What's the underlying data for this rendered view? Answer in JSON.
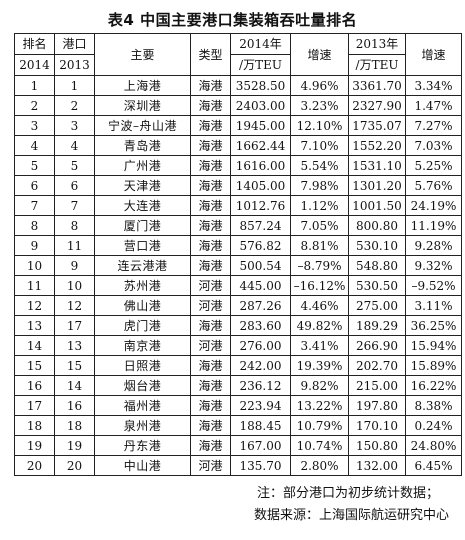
{
  "title": "表4  中国主要港口集装箱吞吐量排名",
  "headers": {
    "rank_label": "排名",
    "rank_year": "2014",
    "port_label": "港口",
    "port_year": "2013",
    "main": "主要",
    "type": "类型",
    "v2014_a": "2014年",
    "v2014_b": "/万TEU",
    "growth_2014": "增速",
    "v2013_a": "2013年",
    "v2013_b": "/万TEU",
    "growth_2013": "增速"
  },
  "rows": [
    {
      "rank": "1",
      "rank2013": "1",
      "port": "上海港",
      "type": "海港",
      "teu2014": "3528.50",
      "growth2014": "4.96%",
      "teu2013": "3361.70",
      "growth2013": "3.34%"
    },
    {
      "rank": "2",
      "rank2013": "2",
      "port": "深圳港",
      "type": "海港",
      "teu2014": "2403.00",
      "growth2014": "3.23%",
      "teu2013": "2327.90",
      "growth2013": "1.47%"
    },
    {
      "rank": "3",
      "rank2013": "3",
      "port": "宁波–舟山港",
      "type": "海港",
      "teu2014": "1945.00",
      "growth2014": "12.10%",
      "teu2013": "1735.07",
      "growth2013": "7.27%"
    },
    {
      "rank": "4",
      "rank2013": "4",
      "port": "青岛港",
      "type": "海港",
      "teu2014": "1662.44",
      "growth2014": "7.10%",
      "teu2013": "1552.20",
      "growth2013": "7.03%"
    },
    {
      "rank": "5",
      "rank2013": "5",
      "port": "广州港",
      "type": "海港",
      "teu2014": "1616.00",
      "growth2014": "5.54%",
      "teu2013": "1531.10",
      "growth2013": "5.25%"
    },
    {
      "rank": "6",
      "rank2013": "6",
      "port": "天津港",
      "type": "海港",
      "teu2014": "1405.00",
      "growth2014": "7.98%",
      "teu2013": "1301.20",
      "growth2013": "5.76%"
    },
    {
      "rank": "7",
      "rank2013": "7",
      "port": "大连港",
      "type": "海港",
      "teu2014": "1012.76",
      "growth2014": "1.12%",
      "teu2013": "1001.50",
      "growth2013": "24.19%"
    },
    {
      "rank": "8",
      "rank2013": "8",
      "port": "厦门港",
      "type": "海港",
      "teu2014": "857.24",
      "growth2014": "7.05%",
      "teu2013": "800.80",
      "growth2013": "11.19%"
    },
    {
      "rank": "9",
      "rank2013": "11",
      "port": "营口港",
      "type": "海港",
      "teu2014": "576.82",
      "growth2014": "8.81%",
      "teu2013": "530.10",
      "growth2013": "9.28%"
    },
    {
      "rank": "10",
      "rank2013": "9",
      "port": "连云港港",
      "type": "海港",
      "teu2014": "500.54",
      "growth2014": "–8.79%",
      "teu2013": "548.80",
      "growth2013": "9.32%"
    },
    {
      "rank": "11",
      "rank2013": "10",
      "port": "苏州港",
      "type": "河港",
      "teu2014": "445.00",
      "growth2014": "–16.12%",
      "teu2013": "530.50",
      "growth2013": "–9.52%"
    },
    {
      "rank": "12",
      "rank2013": "12",
      "port": "佛山港",
      "type": "河港",
      "teu2014": "287.26",
      "growth2014": "4.46%",
      "teu2013": "275.00",
      "growth2013": "3.11%"
    },
    {
      "rank": "13",
      "rank2013": "17",
      "port": "虎门港",
      "type": "海港",
      "teu2014": "283.60",
      "growth2014": "49.82%",
      "teu2013": "189.29",
      "growth2013": "36.25%"
    },
    {
      "rank": "14",
      "rank2013": "13",
      "port": "南京港",
      "type": "河港",
      "teu2014": "276.00",
      "growth2014": "3.41%",
      "teu2013": "266.90",
      "growth2013": "15.94%"
    },
    {
      "rank": "15",
      "rank2013": "15",
      "port": "日照港",
      "type": "海港",
      "teu2014": "242.00",
      "growth2014": "19.39%",
      "teu2013": "202.70",
      "growth2013": "15.89%"
    },
    {
      "rank": "16",
      "rank2013": "14",
      "port": "烟台港",
      "type": "海港",
      "teu2014": "236.12",
      "growth2014": "9.82%",
      "teu2013": "215.00",
      "growth2013": "16.22%"
    },
    {
      "rank": "17",
      "rank2013": "16",
      "port": "福州港",
      "type": "海港",
      "teu2014": "223.94",
      "growth2014": "13.22%",
      "teu2013": "197.80",
      "growth2013": "8.38%"
    },
    {
      "rank": "18",
      "rank2013": "18",
      "port": "泉州港",
      "type": "海港",
      "teu2014": "188.45",
      "growth2014": "10.79%",
      "teu2013": "170.10",
      "growth2013": "0.24%"
    },
    {
      "rank": "19",
      "rank2013": "19",
      "port": "丹东港",
      "type": "海港",
      "teu2014": "167.00",
      "growth2014": "10.74%",
      "teu2013": "150.80",
      "growth2013": "24.80%"
    },
    {
      "rank": "20",
      "rank2013": "20",
      "port": "中山港",
      "type": "河港",
      "teu2014": "135.70",
      "growth2014": "2.80%",
      "teu2013": "132.00",
      "growth2013": "6.45%"
    }
  ],
  "notes": {
    "note": "注：部分港口为初步统计数据；",
    "source": "数据来源：上海国际航运研究中心"
  }
}
